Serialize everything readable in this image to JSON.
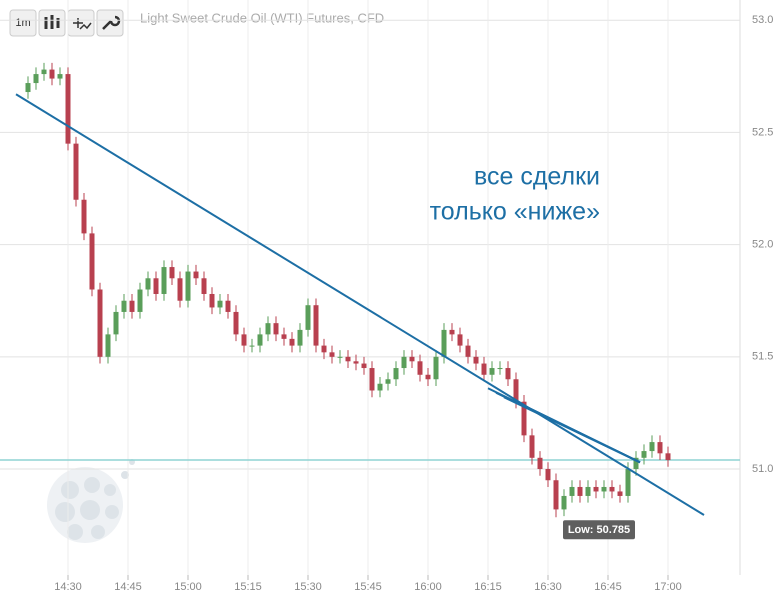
{
  "chart_data": {
    "type": "candlestick",
    "title": "Light Sweet Crude Oil (WTI) Futures, CFD",
    "interval": "1m",
    "x": [
      "14:20",
      "14:22",
      "14:24",
      "14:26",
      "14:28",
      "14:30",
      "14:32",
      "14:34",
      "14:36",
      "14:38",
      "14:40",
      "14:42",
      "14:44",
      "14:46",
      "14:48",
      "14:50",
      "14:52",
      "14:54",
      "14:56",
      "14:58",
      "15:00",
      "15:02",
      "15:04",
      "15:06",
      "15:08",
      "15:10",
      "15:12",
      "15:14",
      "15:16",
      "15:18",
      "15:20",
      "15:22",
      "15:24",
      "15:26",
      "15:28",
      "15:30",
      "15:32",
      "15:34",
      "15:36",
      "15:38",
      "15:40",
      "15:42",
      "15:44",
      "15:46",
      "15:48",
      "15:50",
      "15:52",
      "15:54",
      "15:56",
      "15:58",
      "16:00",
      "16:02",
      "16:04",
      "16:06",
      "16:08",
      "16:10",
      "16:12",
      "16:14",
      "16:16",
      "16:18",
      "16:20",
      "16:22",
      "16:24",
      "16:26",
      "16:28",
      "16:30",
      "16:32",
      "16:34",
      "16:36",
      "16:38",
      "16:40",
      "16:42",
      "16:44",
      "16:46",
      "16:48",
      "16:50",
      "16:52",
      "16:54",
      "16:56",
      "16:58",
      "17:00"
    ],
    "open": [
      52.68,
      52.72,
      52.76,
      52.78,
      52.74,
      52.76,
      52.45,
      52.2,
      52.05,
      51.8,
      51.5,
      51.6,
      51.7,
      51.75,
      51.7,
      51.8,
      51.85,
      51.78,
      51.9,
      51.85,
      51.75,
      51.88,
      51.85,
      51.78,
      51.72,
      51.75,
      51.7,
      51.6,
      51.55,
      51.55,
      51.6,
      51.65,
      51.6,
      51.58,
      51.55,
      51.62,
      51.73,
      51.55,
      51.52,
      51.5,
      51.5,
      51.48,
      51.47,
      51.45,
      51.35,
      51.38,
      51.4,
      51.45,
      51.5,
      51.48,
      51.42,
      51.4,
      51.5,
      51.62,
      51.6,
      51.55,
      51.5,
      51.47,
      51.42,
      51.45,
      51.45,
      51.4,
      51.3,
      51.15,
      51.05,
      51.0,
      50.95,
      50.82,
      50.88,
      50.92,
      50.88,
      50.92,
      50.9,
      50.92,
      50.9,
      50.88,
      51.0,
      51.05,
      51.08,
      51.12,
      51.07
    ],
    "high": [
      52.75,
      52.79,
      52.81,
      52.81,
      52.79,
      52.79,
      52.48,
      52.23,
      52.08,
      51.83,
      51.63,
      51.73,
      51.78,
      51.78,
      51.83,
      51.88,
      51.88,
      51.93,
      51.93,
      51.88,
      51.91,
      51.91,
      51.88,
      51.81,
      51.78,
      51.78,
      51.73,
      51.63,
      51.58,
      51.63,
      51.68,
      51.68,
      51.63,
      51.61,
      51.65,
      51.76,
      51.76,
      51.58,
      51.55,
      51.53,
      51.53,
      51.51,
      51.5,
      51.48,
      51.41,
      51.43,
      51.48,
      51.53,
      51.53,
      51.51,
      51.45,
      51.53,
      51.65,
      51.65,
      51.63,
      51.58,
      51.53,
      51.5,
      51.48,
      51.48,
      51.48,
      51.43,
      51.33,
      51.18,
      51.08,
      51.03,
      50.98,
      50.91,
      50.95,
      50.95,
      50.95,
      50.95,
      50.95,
      50.95,
      50.93,
      51.03,
      51.08,
      51.11,
      51.15,
      51.15,
      51.1
    ],
    "low": [
      52.65,
      52.69,
      52.73,
      52.71,
      52.71,
      52.42,
      52.17,
      52.02,
      51.77,
      51.47,
      51.47,
      51.57,
      51.67,
      51.67,
      51.67,
      51.77,
      51.75,
      51.75,
      51.82,
      51.72,
      51.72,
      51.82,
      51.75,
      51.69,
      51.69,
      51.67,
      51.57,
      51.52,
      51.52,
      51.52,
      51.57,
      51.57,
      51.55,
      51.52,
      51.52,
      51.59,
      51.52,
      51.49,
      51.47,
      51.47,
      51.45,
      51.44,
      51.42,
      51.32,
      51.32,
      51.35,
      51.37,
      51.42,
      51.45,
      51.39,
      51.37,
      51.37,
      51.47,
      51.57,
      51.52,
      51.47,
      51.44,
      51.39,
      51.39,
      51.42,
      51.37,
      51.27,
      51.12,
      51.02,
      50.97,
      50.92,
      50.785,
      50.79,
      50.85,
      50.85,
      50.85,
      50.87,
      50.87,
      50.87,
      50.85,
      50.85,
      50.97,
      51.02,
      51.05,
      51.04,
      51.01
    ],
    "close": [
      52.72,
      52.76,
      52.78,
      52.74,
      52.76,
      52.45,
      52.2,
      52.05,
      51.8,
      51.5,
      51.6,
      51.7,
      51.75,
      51.7,
      51.8,
      51.85,
      51.78,
      51.9,
      51.85,
      51.75,
      51.88,
      51.85,
      51.78,
      51.72,
      51.75,
      51.7,
      51.6,
      51.55,
      51.55,
      51.6,
      51.65,
      51.6,
      51.58,
      51.55,
      51.62,
      51.73,
      51.55,
      51.52,
      51.5,
      51.5,
      51.48,
      51.47,
      51.45,
      51.35,
      51.38,
      51.4,
      51.45,
      51.5,
      51.48,
      51.42,
      51.4,
      51.5,
      51.62,
      51.6,
      51.55,
      51.5,
      51.47,
      51.42,
      51.45,
      51.45,
      51.4,
      51.3,
      51.15,
      51.05,
      51.0,
      50.95,
      50.82,
      50.88,
      50.92,
      50.88,
      50.92,
      50.9,
      50.92,
      50.9,
      50.88,
      51.0,
      51.05,
      51.08,
      51.12,
      51.07,
      51.04
    ],
    "up_color": "#5a9e5a",
    "down_color": "#b8404f",
    "xlim": [
      "14:13",
      "17:18"
    ],
    "xticks": [
      "14:30",
      "14:45",
      "15:00",
      "15:15",
      "15:30",
      "15:45",
      "16:00",
      "16:15",
      "16:30",
      "16:45",
      "17:00"
    ],
    "ylim": [
      50.55,
      53.05
    ],
    "yticks": [
      {
        "value": 53,
        "label": "53.0"
      },
      {
        "value": 52.5,
        "label": "52.5"
      },
      {
        "value": 52,
        "label": "52.0"
      },
      {
        "value": 51.5,
        "label": "51.5"
      },
      {
        "value": 51,
        "label": "51.0"
      }
    ],
    "grid": true,
    "hline": {
      "value": 51.04,
      "color": "#8fd3d3"
    },
    "lines": [
      {
        "x": [
          "14:17",
          "17:09"
        ],
        "y": [
          52.67,
          50.795
        ],
        "color": "#1d6fa5"
      },
      {
        "x": [
          "16:15",
          "16:53"
        ],
        "y": [
          51.36,
          51.03
        ],
        "color": "#1d6fa5"
      },
      {
        "x": [
          "16:17",
          "16:53"
        ],
        "y": [
          51.34,
          51.03
        ],
        "color": "#1d6fa5"
      },
      {
        "x": [
          "16:19",
          "16:53"
        ],
        "y": [
          51.32,
          51.03
        ],
        "color": "#1d6fa5"
      },
      {
        "x": [
          "16:22",
          "16:53"
        ],
        "y": [
          51.3,
          51.03
        ],
        "color": "#1d6fa5"
      }
    ],
    "low_marker": {
      "x": "16:32",
      "value": 50.785,
      "label": "Low: 50.785"
    },
    "annotation": [
      "все сделки",
      "только «ниже»"
    ]
  }
}
